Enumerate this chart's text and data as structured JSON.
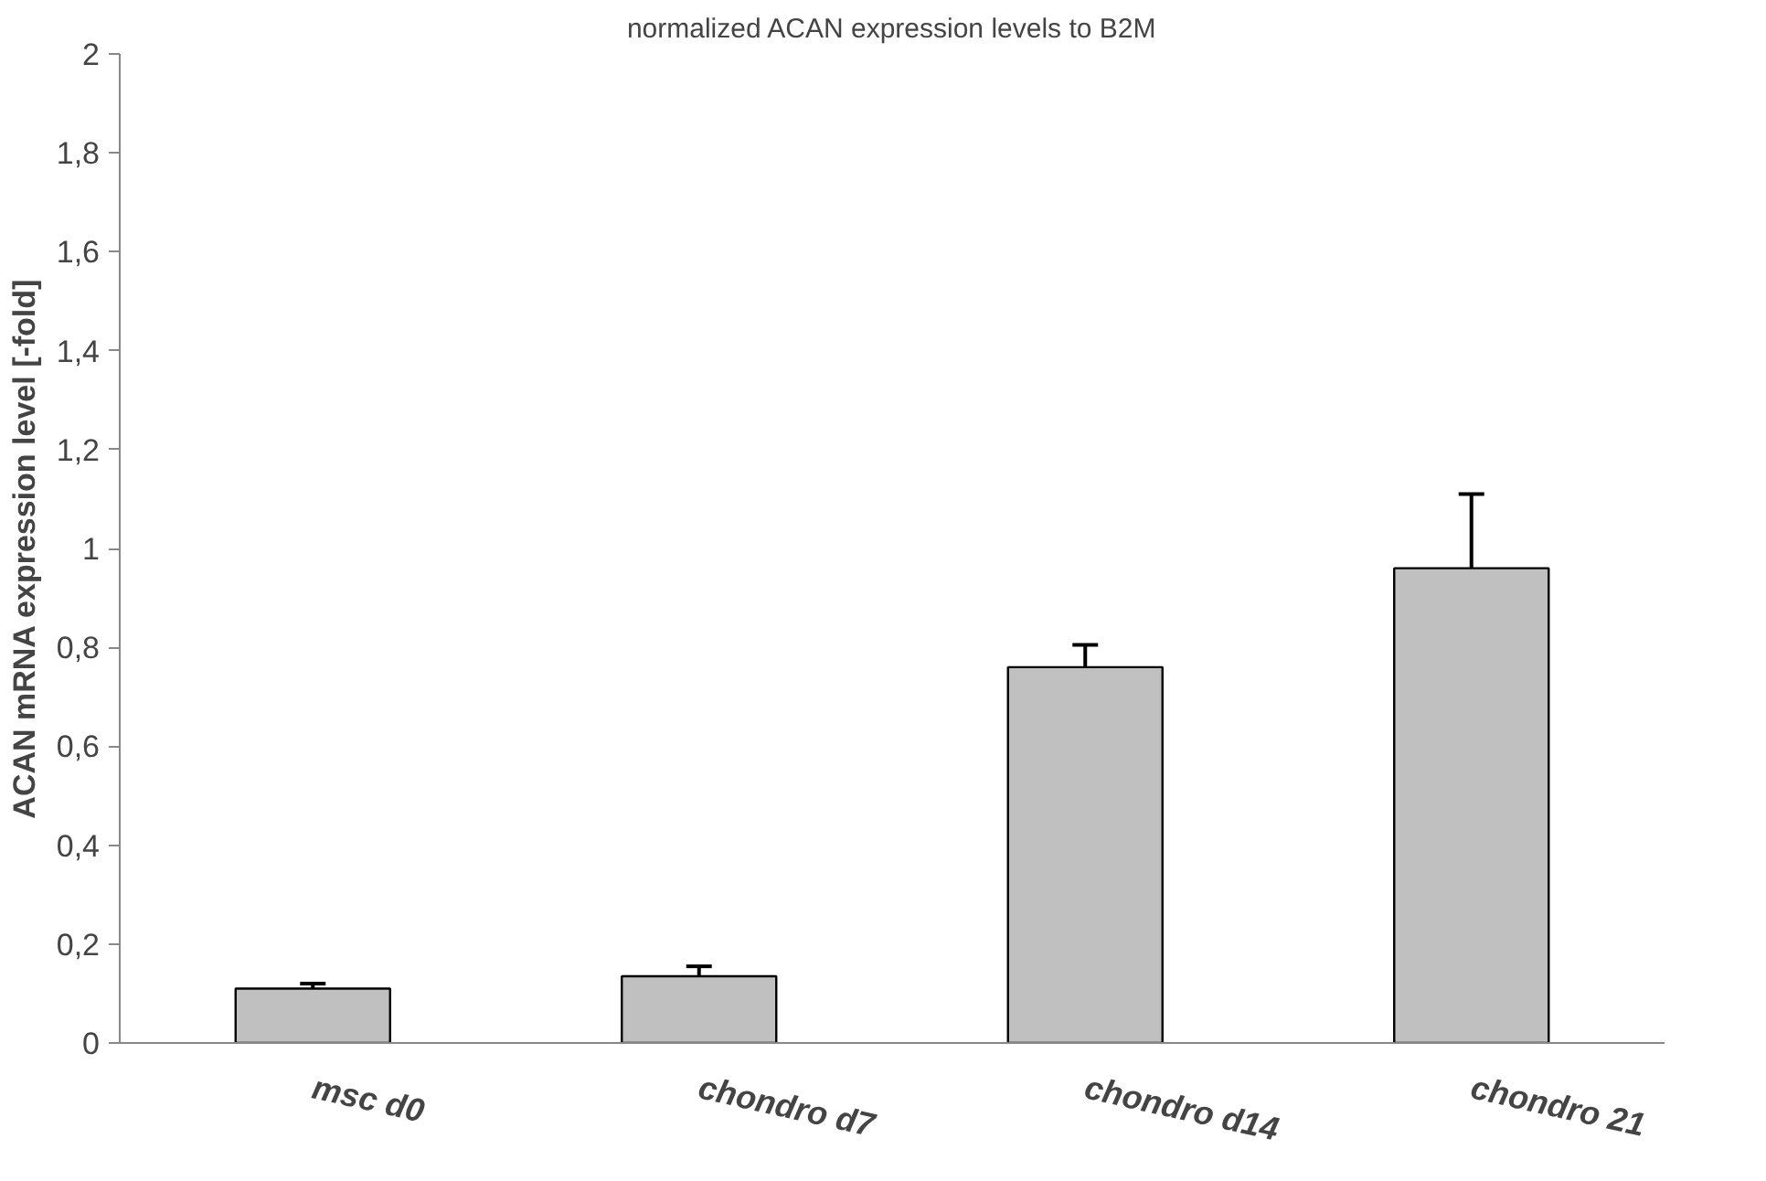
{
  "chart_data": {
    "type": "bar",
    "title": "normalized ACAN expression levels to B2M",
    "ylabel": "ACAN mRNA expression level [-fold]",
    "categories": [
      "msc d0",
      "chondro d7",
      "chondro d14",
      "chondro 21"
    ],
    "values": [
      0.11,
      0.135,
      0.76,
      0.96
    ],
    "errors": [
      0.01,
      0.02,
      0.045,
      0.15
    ],
    "color": "#c0c0c0",
    "ylim": [
      0,
      2
    ],
    "yticks": [
      0,
      {
        "value": 0.2,
        "label": "0,2"
      },
      {
        "value": 0.4,
        "label": "0,4"
      },
      {
        "value": 0.6,
        "label": "0,6"
      },
      {
        "value": 0.8,
        "label": "0,8"
      },
      1,
      {
        "value": 1.2,
        "label": "1,2"
      },
      {
        "value": 1.4,
        "label": "1,4"
      },
      {
        "value": 1.6,
        "label": "1,6"
      },
      {
        "value": 1.8,
        "label": "1,8"
      },
      2
    ],
    "grid": false
  }
}
